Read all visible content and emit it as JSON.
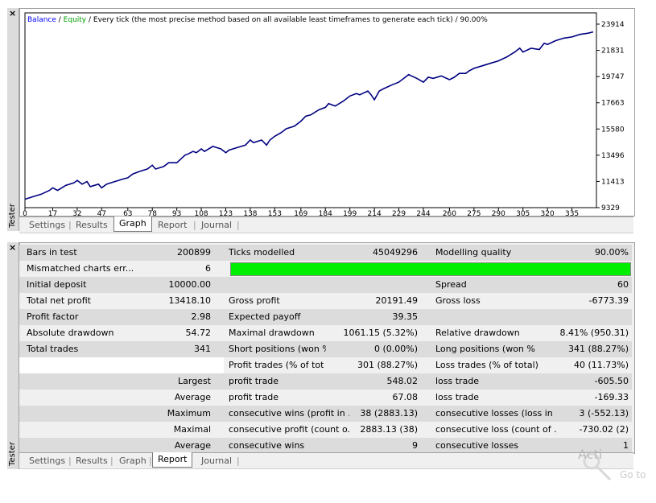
{
  "top_window": {
    "side_label": "Tester",
    "chart_title": {
      "balance": "Balance",
      "sep": " / ",
      "equity": "Equity",
      "rest": " / Every tick (the most precise method based on all available least timeframes to generate each tick) / 90.00%"
    },
    "tabs": [
      "Settings",
      "Results",
      "Graph",
      "Report",
      "Journal"
    ],
    "active_tab": "Graph"
  },
  "chart_data": {
    "type": "line",
    "x_ticks": [
      0,
      17,
      32,
      47,
      63,
      78,
      93,
      108,
      123,
      138,
      153,
      169,
      184,
      199,
      214,
      229,
      244,
      260,
      275,
      290,
      305,
      320,
      335
    ],
    "y_ticks": [
      9329,
      11413,
      13496,
      15580,
      17663,
      19747,
      21831,
      23914
    ],
    "ylim": [
      9329,
      23914
    ],
    "xlim": [
      0,
      350
    ],
    "series": [
      {
        "name": "Balance",
        "color": "#000080",
        "x": [
          0,
          5,
          10,
          15,
          17,
          20,
          25,
          30,
          32,
          35,
          38,
          40,
          45,
          47,
          50,
          55,
          60,
          63,
          66,
          70,
          75,
          78,
          80,
          85,
          88,
          93,
          98,
          100,
          103,
          105,
          108,
          110,
          115,
          120,
          123,
          125,
          130,
          135,
          138,
          140,
          145,
          148,
          150,
          153,
          157,
          160,
          165,
          169,
          172,
          175,
          180,
          184,
          186,
          190,
          195,
          199,
          203,
          205,
          210,
          212,
          214,
          217,
          220,
          225,
          229,
          232,
          235,
          240,
          244,
          247,
          250,
          255,
          260,
          263,
          266,
          270,
          272,
          275,
          280,
          285,
          290,
          295,
          300,
          303,
          305,
          310,
          315,
          318,
          320,
          325,
          330,
          335,
          340,
          345,
          348
        ],
        "values": [
          10000,
          10200,
          10400,
          10700,
          10900,
          10700,
          11100,
          11300,
          11500,
          11200,
          11400,
          11000,
          11200,
          10900,
          11200,
          11400,
          11600,
          11700,
          12000,
          12200,
          12400,
          12700,
          12400,
          12600,
          12900,
          12900,
          13500,
          13600,
          13800,
          13700,
          14000,
          13800,
          14200,
          14000,
          13700,
          13900,
          14100,
          14300,
          14700,
          14500,
          14700,
          14300,
          14700,
          15000,
          15300,
          15600,
          15800,
          16200,
          16600,
          16700,
          17100,
          17300,
          17600,
          17400,
          17800,
          18200,
          18400,
          18300,
          18600,
          18300,
          17900,
          18600,
          18800,
          19100,
          19300,
          19600,
          19900,
          19600,
          19300,
          19700,
          19600,
          19800,
          19500,
          19700,
          20000,
          20000,
          20200,
          20400,
          20600,
          20800,
          21000,
          21300,
          21700,
          22000,
          21700,
          22000,
          21900,
          22400,
          22300,
          22600,
          22800,
          22900,
          23100,
          23200,
          23300
        ]
      },
      {
        "name": "Equity",
        "color": "#00a000"
      }
    ]
  },
  "bottom_window": {
    "side_label": "Tester",
    "tabs": [
      "Settings",
      "Results",
      "Graph",
      "Report",
      "Journal"
    ],
    "active_tab": "Report"
  },
  "report": {
    "row1": {
      "l1": "Bars in test",
      "v1": "200899",
      "l2": "Ticks modelled",
      "v2": "45049296",
      "l3": "Modelling quality",
      "v3": "90.00%"
    },
    "row2": {
      "l1": "Mismatched charts err...",
      "v1": "6"
    },
    "row3": {
      "l1": "Initial deposit",
      "v1": "10000.00",
      "l3": "Spread",
      "v3": "60"
    },
    "row4": {
      "l1": "Total net profit",
      "v1": "13418.10",
      "l2": "Gross profit",
      "v2": "20191.49",
      "l3": "Gross loss",
      "v3": "-6773.39"
    },
    "row5": {
      "l1": "Profit factor",
      "v1": "2.98",
      "l2": "Expected payoff",
      "v2": "39.35"
    },
    "row6": {
      "l1": "Absolute drawdown",
      "v1": "54.72",
      "l2": "Maximal drawdown",
      "v2": "1061.15 (5.32%)",
      "l3": "Relative drawdown",
      "v3": "8.41% (950.31)"
    },
    "row7": {
      "l1": "Total trades",
      "v1": "341",
      "l2": "Short positions (won %)",
      "v2": "0 (0.00%)",
      "l3": "Long positions (won %)",
      "v3": "341 (88.27%)"
    },
    "row8": {
      "l2": "Profit trades (% of total)",
      "v2": "301 (88.27%)",
      "l3": "Loss trades (% of total)",
      "v3": "40 (11.73%)"
    },
    "row9": {
      "l1": "Largest",
      "l2": "profit trade",
      "v2": "548.02",
      "l3": "loss trade",
      "v3": "-605.50"
    },
    "row10": {
      "l1": "Average",
      "l2": "profit trade",
      "v2": "67.08",
      "l3": "loss trade",
      "v3": "-169.33"
    },
    "row11": {
      "l1": "Maximum",
      "l2": "consecutive wins (profit in ...",
      "v2": "38 (2883.13)",
      "l3": "consecutive losses (loss in ...",
      "v3": "3 (-552.13)"
    },
    "row12": {
      "l1": "Maximal",
      "l2": "consecutive profit (count o...",
      "v2": "2883.13 (38)",
      "l3": "consecutive loss (count of ...",
      "v3": "-730.02 (2)"
    },
    "row13": {
      "l1": "Average",
      "l2": "consecutive wins",
      "v2": "9",
      "l3": "consecutive losses",
      "v3": "1"
    }
  },
  "watermark": {
    "line1": "Acti",
    "line2": "Go to"
  }
}
